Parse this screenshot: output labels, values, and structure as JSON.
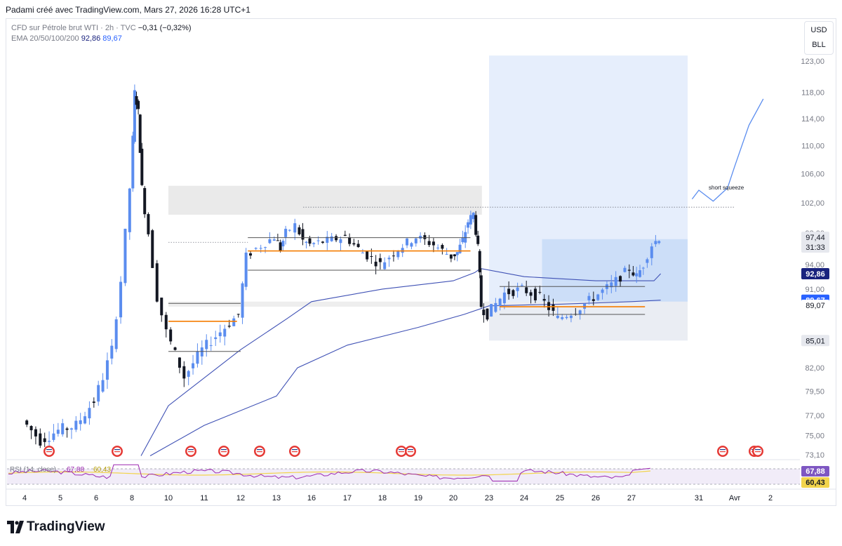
{
  "header": {
    "attribution": "Padami créé avec TradingView.com, Mars 27, 2026 16:28 UTC+1"
  },
  "legend": {
    "symbol_line": "CFD sur Pétrole brut WTI · 2h · TVC",
    "change": "−0,31 (−0,32%)",
    "ema_label": "EMA 20/50/100/200",
    "ema_value_1": "92,86",
    "ema_value_2": "89,67"
  },
  "currency": {
    "code": "USD",
    "unit": "BLL"
  },
  "rsi_legend": {
    "label": "RSI (14, close)",
    "value_1": "67,88",
    "value_2": "60,43"
  },
  "annotation": {
    "text": "short squeeze"
  },
  "footer": {
    "brand": "TradingView"
  },
  "colors": {
    "up_candle": "#5b8def",
    "down_candle": "#131722",
    "ema_line": "#3f51b5",
    "orange_level": "#f57c00",
    "target_zone": "#dde8fb",
    "rsi_line": "#9c27b0",
    "rsi_ma": "#f2d44c"
  },
  "chart_data": {
    "type": "candlestick",
    "y_scale": "log",
    "ylim": [
      72.5,
      125
    ],
    "price_ticks": [
      "123,00",
      "118,00",
      "114,00",
      "110,00",
      "106,00",
      "102,00",
      "98,00",
      "94,00",
      "91,00",
      "82,00",
      "79,50",
      "77,00",
      "75,00",
      "73,10"
    ],
    "x_ticks": [
      "4",
      "5",
      "6",
      "8",
      "10",
      "11",
      "12",
      "13",
      "16",
      "17",
      "18",
      "19",
      "20",
      "23",
      "24",
      "25",
      "26",
      "27",
      "31",
      "Avr",
      "2"
    ],
    "price_labels": [
      {
        "text": "97,44",
        "style": "last",
        "color": "#131722"
      },
      {
        "text": "31:33",
        "style": "countdown",
        "color": "#131722"
      },
      {
        "text": "92,86",
        "style": "ema",
        "color": "#1a237e"
      },
      {
        "text": "89,67",
        "style": "ema",
        "color": "#2962ff"
      },
      {
        "text": "89,07",
        "style": "plain",
        "color": "#131722"
      },
      {
        "text": "85,01",
        "style": "level",
        "color": "#131722"
      }
    ],
    "price_path": [
      [
        4,
        76.5
      ],
      [
        4.5,
        74.5
      ],
      [
        5,
        75.5
      ],
      [
        5.5,
        76
      ],
      [
        6,
        78.5
      ],
      [
        6.5,
        81
      ],
      [
        7,
        84
      ],
      [
        7.5,
        92
      ],
      [
        8,
        104
      ],
      [
        8.2,
        118
      ],
      [
        8.4,
        115
      ],
      [
        8.6,
        104
      ],
      [
        9,
        98
      ],
      [
        9.5,
        90
      ],
      [
        10,
        86
      ],
      [
        10.5,
        81
      ],
      [
        11,
        84
      ],
      [
        11.5,
        86
      ],
      [
        12,
        88
      ],
      [
        12.2,
        95
      ],
      [
        12.5,
        96
      ],
      [
        13,
        97.5
      ],
      [
        13.5,
        96
      ],
      [
        14,
        98
      ],
      [
        15,
        99
      ],
      [
        15.5,
        97
      ],
      [
        16,
        96.5
      ],
      [
        16.5,
        97
      ],
      [
        17,
        97.5
      ],
      [
        17.5,
        95.5
      ],
      [
        18,
        94
      ],
      [
        18.5,
        96
      ],
      [
        19,
        97.5
      ],
      [
        19.5,
        96.5
      ],
      [
        20,
        95
      ],
      [
        20.5,
        95.5
      ],
      [
        21,
        97
      ],
      [
        21.5,
        99.5
      ],
      [
        22,
        100.5
      ],
      [
        22.3,
        96
      ],
      [
        22.5,
        89
      ],
      [
        23,
        88
      ],
      [
        23.5,
        90.5
      ],
      [
        24,
        91
      ],
      [
        24.5,
        90
      ],
      [
        25,
        87.5
      ],
      [
        25.5,
        88.5
      ],
      [
        26,
        90
      ],
      [
        26.5,
        91.5
      ],
      [
        27,
        93.5
      ],
      [
        27.3,
        92.5
      ],
      [
        27.6,
        94
      ],
      [
        28,
        96.5
      ],
      [
        28.3,
        97.4
      ]
    ],
    "ema_100": [
      [
        8.5,
        73
      ],
      [
        10,
        78
      ],
      [
        12,
        84
      ],
      [
        14,
        87.5
      ],
      [
        16,
        89.5
      ],
      [
        18,
        91
      ],
      [
        20,
        92
      ],
      [
        22,
        93
      ],
      [
        22.4,
        93.5
      ],
      [
        24,
        92.5
      ],
      [
        26,
        92
      ],
      [
        28,
        92
      ],
      [
        28.3,
        92.86
      ]
    ],
    "ema_200": [
      [
        9,
        73
      ],
      [
        11,
        76
      ],
      [
        13,
        79
      ],
      [
        15,
        82
      ],
      [
        17,
        84.5
      ],
      [
        19,
        86.5
      ],
      [
        21,
        88
      ],
      [
        23,
        89
      ],
      [
        25,
        89.2
      ],
      [
        27,
        89.5
      ],
      [
        28.3,
        89.67
      ]
    ],
    "levels": [
      {
        "name": "resistance-zone",
        "y_top": 104.3,
        "y_bottom": 100.4,
        "x_from": 10,
        "x_to": 22.5,
        "color": "#e8e8e8"
      },
      {
        "name": "support-zone",
        "y_top": 89.5,
        "y_bottom": 88.9,
        "x_from": 10,
        "x_to": 23,
        "color": "#ececec"
      },
      {
        "name": "target-zone",
        "y_top": 123.9,
        "y_bottom": 85.01,
        "x_from": 23,
        "x_to": 29.5,
        "color": "#dde8fb"
      },
      {
        "name": "entry-zone",
        "y_top": 97.2,
        "y_bottom": 89.5,
        "x_from": 24.5,
        "x_to": 29.5,
        "color": "#c9dcf7"
      }
    ],
    "orange_lines": [
      {
        "y": 87.2,
        "x_from": 10,
        "x_to": 11.9
      },
      {
        "y": 95.7,
        "x_from": 12.2,
        "x_to": 21.6
      },
      {
        "y": 88.9,
        "x_from": 23.3,
        "x_to": 27.6
      }
    ],
    "dotted_lines": [
      {
        "y": 101.4,
        "x_from": 15.4,
        "x_to": 31
      },
      {
        "y": 96.8,
        "x_from": 10,
        "x_to": 12.2
      }
    ],
    "projection": [
      [
        29.7,
        102.5
      ],
      [
        30,
        103.7
      ],
      [
        30.4,
        102.2
      ],
      [
        30.8,
        104
      ],
      [
        31,
        107
      ],
      [
        31.4,
        113
      ],
      [
        31.8,
        117
      ]
    ],
    "rsi": {
      "series": [
        {
          "name": "RSI (14, close)",
          "last": 67.88
        },
        {
          "name": "RSI-based MA",
          "last": 60.43
        }
      ],
      "ylim": [
        20,
        80
      ],
      "bands": [
        30,
        70
      ]
    }
  }
}
